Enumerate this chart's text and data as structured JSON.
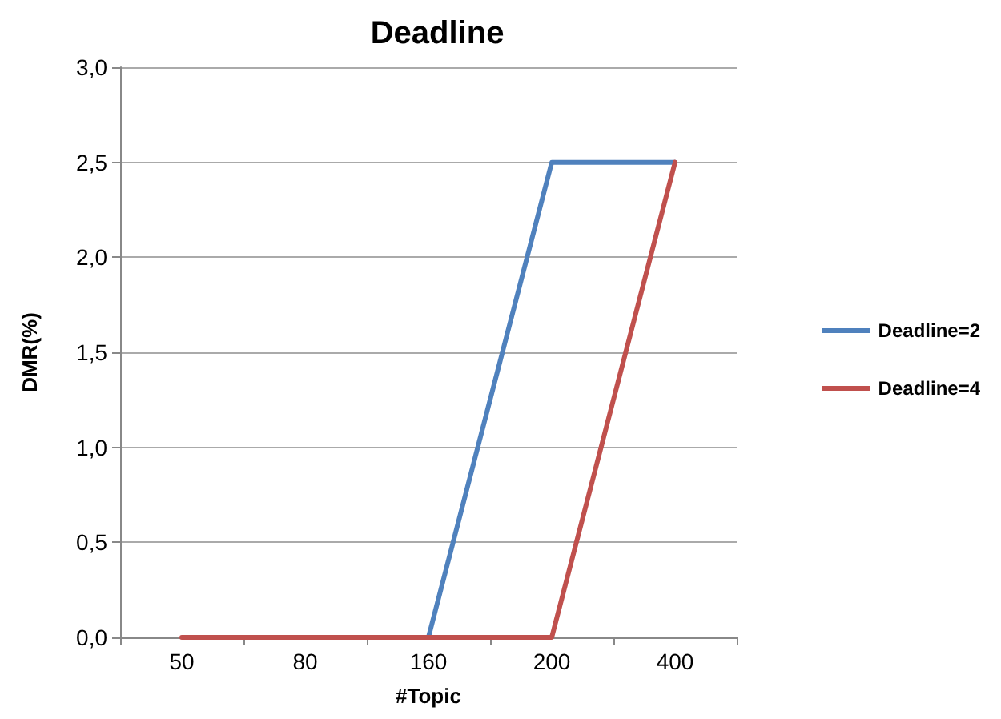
{
  "chart_data": {
    "type": "line",
    "title": "Deadline",
    "xlabel": "#Topic",
    "ylabel": "DMR(%)",
    "categories": [
      "50",
      "80",
      "160",
      "200",
      "400"
    ],
    "series": [
      {
        "name": "Deadline=2",
        "color": "#4f81bd",
        "values": [
          null,
          null,
          0,
          2.5,
          2.5
        ]
      },
      {
        "name": "Deadline=4",
        "color": "#c0504d",
        "values": [
          0,
          0,
          0,
          0,
          2.5
        ]
      }
    ],
    "ylim": [
      0,
      3
    ],
    "yticks": [
      {
        "value": 0,
        "label": "0,0"
      },
      {
        "value": 0.5,
        "label": "0,5"
      },
      {
        "value": 1,
        "label": "1,0"
      },
      {
        "value": 1.5,
        "label": "1,5"
      },
      {
        "value": 2,
        "label": "2,0"
      },
      {
        "value": 2.5,
        "label": "2,5"
      },
      {
        "value": 3,
        "label": "3,0"
      }
    ],
    "grid": "y",
    "legend": "right",
    "marker": "none",
    "line_style": "solid"
  }
}
